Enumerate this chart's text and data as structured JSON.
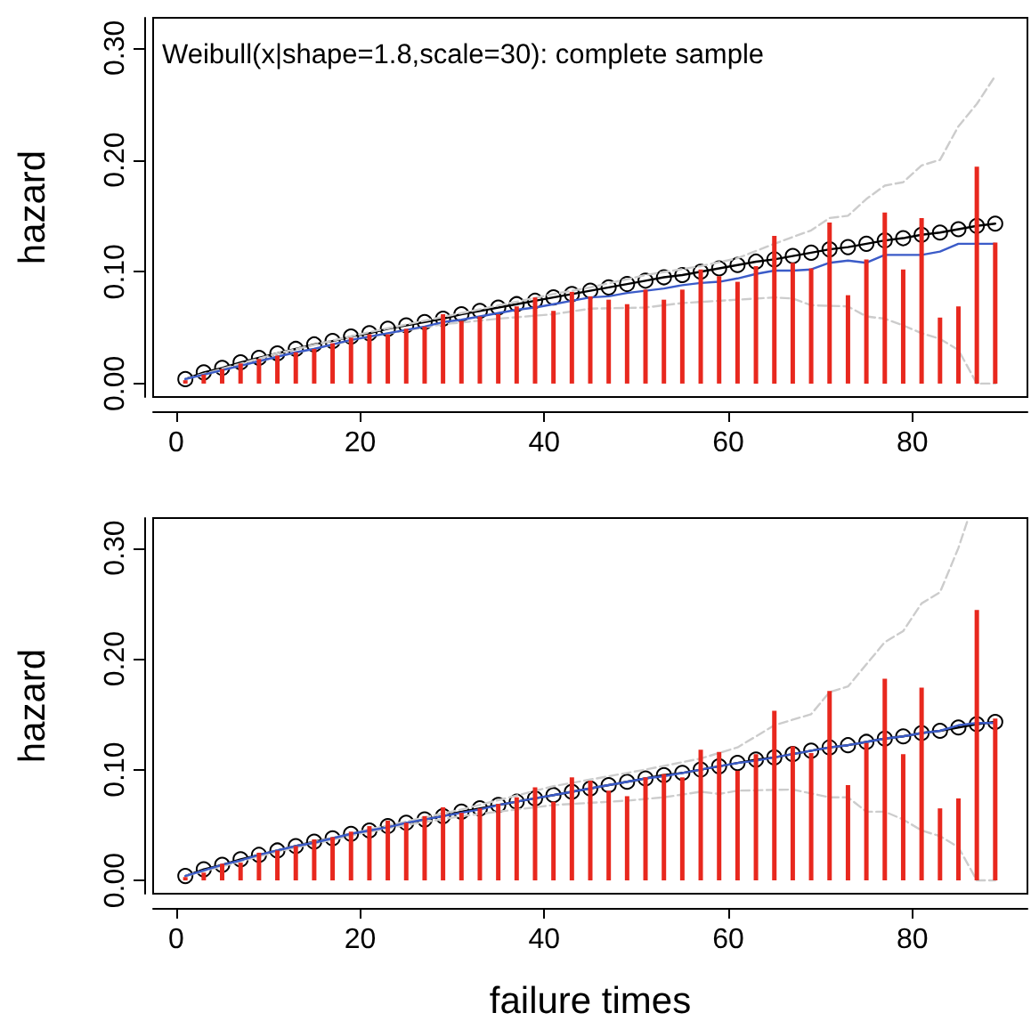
{
  "chart_data": [
    {
      "type": "line",
      "title": "Weibull(x|shape=1.8,scale=30): complete sample",
      "ylabel": "hazard",
      "xlim": [
        -2.5,
        92.5
      ],
      "ylim": [
        -0.012,
        0.327
      ],
      "xticks": [
        0,
        20,
        40,
        60,
        80
      ],
      "yticks": [
        {
          "value": 0,
          "label": "0.00"
        },
        {
          "value": 0.1,
          "label": "0.10"
        },
        {
          "value": 0.2,
          "label": "0.20"
        },
        {
          "value": 0.3,
          "label": "0.30"
        }
      ],
      "series": [
        {
          "type": "bar",
          "color": "#e8281e",
          "x": [
            1,
            3,
            5,
            7,
            9,
            11,
            13,
            15,
            17,
            19,
            21,
            23,
            25,
            27,
            29,
            31,
            33,
            35,
            37,
            39,
            41,
            43,
            45,
            47,
            49,
            51,
            53,
            55,
            57,
            59,
            61,
            63,
            65,
            67,
            69,
            71,
            73,
            75,
            77,
            79,
            81,
            83,
            85,
            87,
            89
          ],
          "values": [
            0.003,
            0.008,
            0.013,
            0.018,
            0.022,
            0.025,
            0.028,
            0.031,
            0.036,
            0.041,
            0.044,
            0.044,
            0.049,
            0.051,
            0.062,
            0.056,
            0.06,
            0.062,
            0.069,
            0.077,
            0.065,
            0.082,
            0.078,
            0.075,
            0.071,
            0.084,
            0.075,
            0.084,
            0.102,
            0.096,
            0.091,
            0.105,
            0.132,
            0.108,
            0.103,
            0.144,
            0.079,
            0.111,
            0.153,
            0.102,
            0.148,
            0.059,
            0.069,
            0.194,
            0.126
          ]
        },
        {
          "type": "line",
          "color": "#cccccc",
          "line_style": "dashed",
          "marker": "none",
          "x": [
            1,
            11,
            21,
            31,
            41,
            45,
            51,
            57,
            61,
            65,
            69,
            71,
            73,
            75,
            77,
            79,
            81,
            83,
            85,
            87,
            89
          ],
          "values": [
            0.004,
            0.027,
            0.046,
            0.063,
            0.08,
            0.086,
            0.097,
            0.105,
            0.112,
            0.125,
            0.137,
            0.148,
            0.15,
            0.165,
            0.177,
            0.18,
            0.195,
            0.2,
            0.23,
            0.25,
            0.275
          ]
        },
        {
          "type": "line",
          "color": "#cccccc",
          "line_style": "dashed",
          "marker": "none",
          "x": [
            1,
            11,
            21,
            29,
            35,
            41,
            45,
            51,
            55,
            61,
            65,
            67,
            69,
            73,
            75,
            77,
            79,
            81,
            83,
            85,
            87,
            89
          ],
          "values": [
            0.004,
            0.024,
            0.042,
            0.053,
            0.058,
            0.062,
            0.067,
            0.068,
            0.072,
            0.075,
            0.077,
            0.076,
            0.07,
            0.069,
            0.06,
            0.058,
            0.052,
            0.045,
            0.04,
            0.03,
            0,
            0
          ]
        },
        {
          "type": "line",
          "color": "#3b5bc8",
          "line_style": "solid",
          "marker": "none",
          "x": [
            1,
            3,
            5,
            7,
            9,
            11,
            13,
            15,
            17,
            19,
            21,
            23,
            25,
            27,
            29,
            31,
            33,
            35,
            37,
            39,
            41,
            43,
            45,
            47,
            49,
            51,
            53,
            55,
            57,
            59,
            61,
            63,
            65,
            67,
            69,
            71,
            73,
            75,
            77,
            79,
            81,
            83,
            85,
            87,
            89
          ],
          "values": [
            0.004,
            0.008,
            0.012,
            0.016,
            0.02,
            0.024,
            0.028,
            0.031,
            0.035,
            0.039,
            0.042,
            0.045,
            0.048,
            0.051,
            0.055,
            0.057,
            0.06,
            0.063,
            0.066,
            0.068,
            0.071,
            0.074,
            0.077,
            0.078,
            0.081,
            0.083,
            0.085,
            0.088,
            0.09,
            0.091,
            0.094,
            0.098,
            0.101,
            0.101,
            0.102,
            0.108,
            0.11,
            0.108,
            0.115,
            0.115,
            0.115,
            0.118,
            0.125,
            0.125,
            0.125
          ]
        },
        {
          "color": "#000000",
          "line_style": "solid",
          "marker": "circle",
          "x": [
            1,
            3,
            5,
            7,
            9,
            11,
            13,
            15,
            17,
            19,
            21,
            23,
            25,
            27,
            29,
            31,
            33,
            35,
            37,
            39,
            41,
            43,
            45,
            47,
            49,
            51,
            53,
            55,
            57,
            59,
            61,
            63,
            65,
            67,
            69,
            71,
            73,
            75,
            77,
            79,
            81,
            83,
            85,
            87,
            89
          ],
          "values": [
            0.004,
            0.01,
            0.014,
            0.019,
            0.023,
            0.027,
            0.031,
            0.035,
            0.038,
            0.042,
            0.045,
            0.049,
            0.052,
            0.055,
            0.058,
            0.062,
            0.065,
            0.068,
            0.071,
            0.074,
            0.077,
            0.08,
            0.083,
            0.086,
            0.089,
            0.092,
            0.095,
            0.097,
            0.1,
            0.103,
            0.106,
            0.109,
            0.111,
            0.114,
            0.117,
            0.12,
            0.122,
            0.125,
            0.128,
            0.13,
            0.133,
            0.135,
            0.138,
            0.141,
            0.143
          ]
        }
      ]
    },
    {
      "type": "line",
      "ylabel": "hazard",
      "xlabel": "failure times",
      "xlim": [
        -2.5,
        92.5
      ],
      "ylim": [
        -0.012,
        0.327
      ],
      "xticks": [
        0,
        20,
        40,
        60,
        80
      ],
      "yticks": [
        {
          "value": 0,
          "label": "0.00"
        },
        {
          "value": 0.1,
          "label": "0.10"
        },
        {
          "value": 0.2,
          "label": "0.20"
        },
        {
          "value": 0.3,
          "label": "0.30"
        }
      ],
      "series": [
        {
          "type": "bar",
          "color": "#e8281e",
          "x": [
            1,
            3,
            5,
            7,
            9,
            11,
            13,
            15,
            17,
            19,
            21,
            23,
            25,
            27,
            29,
            31,
            33,
            35,
            37,
            39,
            41,
            43,
            45,
            47,
            49,
            51,
            53,
            55,
            57,
            59,
            61,
            63,
            65,
            67,
            69,
            71,
            73,
            75,
            77,
            79,
            81,
            83,
            85,
            87,
            89
          ],
          "values": [
            0.003,
            0.007,
            0.015,
            0.016,
            0.025,
            0.027,
            0.031,
            0.037,
            0.039,
            0.044,
            0.049,
            0.054,
            0.052,
            0.058,
            0.066,
            0.061,
            0.065,
            0.069,
            0.075,
            0.084,
            0.071,
            0.093,
            0.09,
            0.081,
            0.076,
            0.093,
            0.096,
            0.093,
            0.118,
            0.116,
            0.099,
            0.114,
            0.153,
            0.121,
            0.115,
            0.171,
            0.086,
            0.124,
            0.182,
            0.114,
            0.174,
            0.065,
            0.074,
            0.244,
            0.146
          ]
        },
        {
          "type": "line",
          "color": "#cccccc",
          "line_style": "dashed",
          "marker": "none",
          "x": [
            1,
            11,
            21,
            31,
            41,
            51,
            57,
            61,
            65,
            69,
            71,
            73,
            75,
            77,
            79,
            81,
            83,
            85,
            86
          ],
          "values": [
            0.004,
            0.027,
            0.046,
            0.064,
            0.085,
            0.1,
            0.11,
            0.12,
            0.14,
            0.15,
            0.17,
            0.175,
            0.195,
            0.215,
            0.225,
            0.25,
            0.26,
            0.3,
            0.325
          ]
        },
        {
          "type": "line",
          "color": "#cccccc",
          "line_style": "dashed",
          "marker": "none",
          "x": [
            1,
            11,
            21,
            25,
            31,
            41,
            49,
            53,
            57,
            59,
            61,
            67,
            71,
            73,
            75,
            77,
            79,
            81,
            83,
            85,
            87,
            89
          ],
          "values": [
            0.004,
            0.026,
            0.044,
            0.05,
            0.058,
            0.068,
            0.072,
            0.075,
            0.08,
            0.078,
            0.081,
            0.082,
            0.075,
            0.075,
            0.062,
            0.062,
            0.055,
            0.045,
            0.04,
            0.03,
            0,
            0
          ]
        },
        {
          "type": "line",
          "color": "#3b5bc8",
          "line_style": "solid",
          "marker": "none",
          "x": [
            1,
            3,
            5,
            7,
            9,
            11,
            13,
            15,
            17,
            19,
            21,
            23,
            25,
            27,
            29,
            31,
            33,
            35,
            37,
            39,
            41,
            43,
            45,
            47,
            49,
            51,
            53,
            55,
            57,
            59,
            61,
            63,
            65,
            67,
            69,
            71,
            73,
            75,
            77,
            79,
            81,
            83,
            85,
            87,
            89
          ],
          "values": [
            0.004,
            0.009,
            0.014,
            0.018,
            0.023,
            0.027,
            0.031,
            0.034,
            0.038,
            0.042,
            0.045,
            0.048,
            0.052,
            0.055,
            0.058,
            0.061,
            0.064,
            0.068,
            0.071,
            0.074,
            0.077,
            0.08,
            0.083,
            0.086,
            0.089,
            0.092,
            0.094,
            0.097,
            0.1,
            0.103,
            0.106,
            0.108,
            0.111,
            0.114,
            0.117,
            0.12,
            0.122,
            0.125,
            0.128,
            0.13,
            0.133,
            0.135,
            0.14,
            0.142,
            0.142
          ]
        },
        {
          "color": "#000000",
          "line_style": "solid",
          "marker": "circle",
          "x": [
            1,
            3,
            5,
            7,
            9,
            11,
            13,
            15,
            17,
            19,
            21,
            23,
            25,
            27,
            29,
            31,
            33,
            35,
            37,
            39,
            41,
            43,
            45,
            47,
            49,
            51,
            53,
            55,
            57,
            59,
            61,
            63,
            65,
            67,
            69,
            71,
            73,
            75,
            77,
            79,
            81,
            83,
            85,
            87,
            89
          ],
          "values": [
            0.004,
            0.01,
            0.014,
            0.019,
            0.023,
            0.027,
            0.031,
            0.035,
            0.038,
            0.042,
            0.045,
            0.049,
            0.052,
            0.055,
            0.058,
            0.062,
            0.065,
            0.068,
            0.071,
            0.074,
            0.077,
            0.08,
            0.083,
            0.086,
            0.089,
            0.092,
            0.095,
            0.097,
            0.1,
            0.103,
            0.106,
            0.109,
            0.111,
            0.114,
            0.117,
            0.12,
            0.122,
            0.125,
            0.128,
            0.13,
            0.133,
            0.135,
            0.138,
            0.141,
            0.143
          ]
        }
      ]
    }
  ]
}
